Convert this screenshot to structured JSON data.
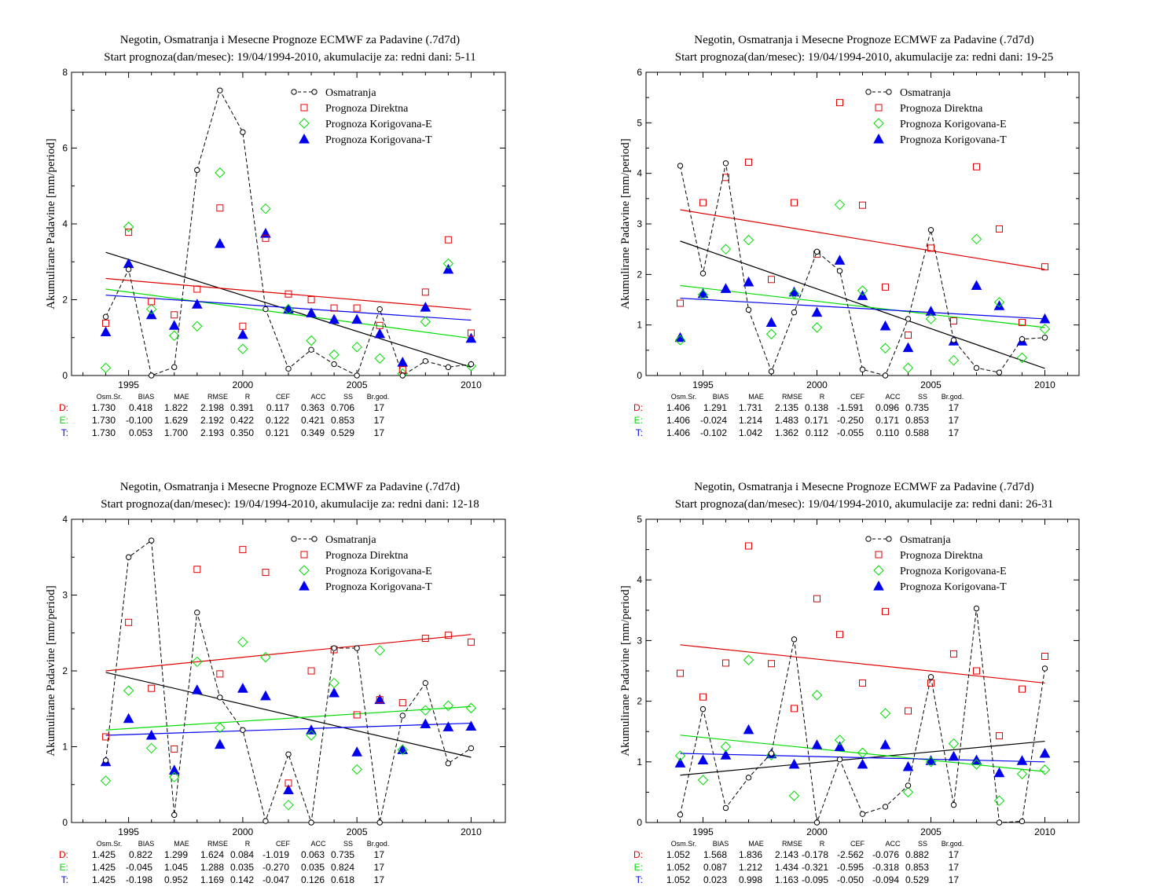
{
  "colors": {
    "observed": "#000000",
    "direct": "#e00000",
    "corrected_e": "#00dd00",
    "corrected_t": "#0000ee"
  },
  "legend": [
    "Osmatranja",
    "Prognoza Direktna",
    "Prognoza Korigovana-E",
    "Prognoza Korigovana-T"
  ],
  "stats_headers": [
    "Osm.Sr.",
    "BIAS",
    "MAE",
    "RMSE",
    "R",
    "CEF",
    "ACC",
    "SS",
    "Br.god."
  ],
  "chart_data": [
    {
      "type": "scatter",
      "title": "Negotin, Osmatranja i Mesecne Prognoze ECMWF za Padavine (.7d7d)",
      "subtitle": "Start prognoza(dan/mesec): 19/04/1994-2010, akumulacije za: redni dani: 5-11",
      "ylabel": "Akumulirane Padavine [mm/period]",
      "xlim": [
        1992.5,
        2011.5
      ],
      "ylim": [
        0,
        8
      ],
      "xticks": [
        1995,
        2000,
        2005,
        2010
      ],
      "yticks": [
        0,
        2,
        4,
        6,
        8
      ],
      "x": [
        1994,
        1995,
        1996,
        1997,
        1998,
        1999,
        2000,
        2001,
        2002,
        2003,
        2004,
        2005,
        2006,
        2007,
        2008,
        2009,
        2010
      ],
      "series": [
        {
          "name": "Osmatranja",
          "values": [
            1.55,
            2.8,
            0.0,
            0.22,
            5.42,
            7.52,
            6.42,
            1.75,
            0.18,
            0.68,
            0.3,
            0.0,
            1.75,
            0.0,
            0.38,
            0.22,
            0.3
          ]
        },
        {
          "name": "Prognoza Direktna",
          "values": [
            1.38,
            3.78,
            1.95,
            1.6,
            2.28,
            4.42,
            1.3,
            3.62,
            2.15,
            2.0,
            1.78,
            1.78,
            1.32,
            0.15,
            2.2,
            3.58,
            1.12
          ]
        },
        {
          "name": "Prognoza Korigovana-E",
          "values": [
            0.2,
            3.92,
            1.75,
            1.05,
            1.3,
            5.35,
            0.7,
            4.4,
            1.75,
            0.92,
            0.55,
            0.75,
            0.45,
            0.05,
            1.42,
            2.95,
            0.25
          ]
        },
        {
          "name": "Prognoza Korigovana-T",
          "values": [
            1.15,
            2.95,
            1.6,
            1.32,
            1.88,
            3.48,
            1.08,
            3.75,
            1.75,
            1.65,
            1.48,
            1.48,
            1.1,
            0.35,
            1.8,
            2.8,
            0.98
          ]
        }
      ],
      "trends": [
        {
          "series": "Osmatranja",
          "from": [
            1994,
            3.25
          ],
          "to": [
            2010,
            0.22
          ]
        },
        {
          "series": "Prognoza Direktna",
          "from": [
            1994,
            2.56
          ],
          "to": [
            2010,
            1.74
          ]
        },
        {
          "series": "Prognoza Korigovana-E",
          "from": [
            1994,
            2.28
          ],
          "to": [
            2010,
            0.98
          ]
        },
        {
          "series": "Prognoza Korigovana-T",
          "from": [
            1994,
            2.12
          ],
          "to": [
            2010,
            1.46
          ]
        }
      ],
      "stats": [
        {
          "label": "D:",
          "values": [
            "1.730",
            "0.418",
            "1.822",
            "2.198",
            "0.391",
            "0.117",
            "0.363",
            "0.706",
            "17"
          ]
        },
        {
          "label": "E:",
          "values": [
            "1.730",
            "-0.100",
            "1.629",
            "2.192",
            "0.422",
            "0.122",
            "0.421",
            "0.853",
            "17"
          ]
        },
        {
          "label": "T:",
          "values": [
            "1.730",
            "0.053",
            "1.700",
            "2.193",
            "0.350",
            "0.121",
            "0.349",
            "0.529",
            "17"
          ]
        }
      ]
    },
    {
      "type": "scatter",
      "title": "Negotin, Osmatranja i Mesecne Prognoze ECMWF za Padavine (.7d7d)",
      "subtitle": "Start prognoza(dan/mesec): 19/04/1994-2010, akumulacije za: redni dani: 19-25",
      "ylabel": "Akumulirane Padavine [mm/period]",
      "xlim": [
        1992.5,
        2011.5
      ],
      "ylim": [
        0,
        6
      ],
      "xticks": [
        1995,
        2000,
        2005,
        2010
      ],
      "yticks": [
        0,
        1,
        2,
        3,
        4,
        5,
        6
      ],
      "x": [
        1994,
        1995,
        1996,
        1997,
        1998,
        1999,
        2000,
        2001,
        2002,
        2003,
        2004,
        2005,
        2006,
        2007,
        2008,
        2009,
        2010
      ],
      "series": [
        {
          "name": "Osmatranja",
          "values": [
            4.15,
            2.02,
            4.2,
            1.3,
            0.08,
            1.25,
            2.45,
            2.07,
            0.12,
            0.0,
            1.12,
            2.88,
            0.7,
            0.15,
            0.06,
            0.72,
            0.75
          ]
        },
        {
          "name": "Prognoza Direktna",
          "values": [
            1.43,
            3.42,
            3.92,
            4.22,
            1.9,
            3.42,
            2.4,
            5.4,
            3.37,
            1.75,
            0.8,
            2.52,
            1.08,
            4.13,
            2.9,
            1.05,
            2.15
          ]
        },
        {
          "name": "Prognoza Korigovana-E",
          "values": [
            0.7,
            1.6,
            2.5,
            2.68,
            0.82,
            1.62,
            0.95,
            3.38,
            1.68,
            0.54,
            0.15,
            1.12,
            0.3,
            2.7,
            1.45,
            0.35,
            0.92
          ]
        },
        {
          "name": "Prognoza Korigovana-T",
          "values": [
            0.75,
            1.62,
            1.72,
            1.85,
            1.05,
            1.65,
            1.25,
            2.28,
            1.58,
            0.98,
            0.55,
            1.27,
            0.68,
            1.78,
            1.38,
            0.68,
            1.12
          ]
        }
      ],
      "trends": [
        {
          "series": "Osmatranja",
          "from": [
            1994,
            2.66
          ],
          "to": [
            2010,
            0.14
          ]
        },
        {
          "series": "Prognoza Direktna",
          "from": [
            1994,
            3.28
          ],
          "to": [
            2010,
            2.1
          ]
        },
        {
          "series": "Prognoza Korigovana-E",
          "from": [
            1994,
            1.78
          ],
          "to": [
            2010,
            0.95
          ]
        },
        {
          "series": "Prognoza Korigovana-T",
          "from": [
            1994,
            1.53
          ],
          "to": [
            2010,
            1.12
          ]
        }
      ],
      "stats": [
        {
          "label": "D:",
          "values": [
            "1.406",
            "1.291",
            "1.731",
            "2.135",
            "0.138",
            "-1.591",
            "0.096",
            "0.735",
            "17"
          ]
        },
        {
          "label": "E:",
          "values": [
            "1.406",
            "-0.024",
            "1.214",
            "1.483",
            "0.171",
            "-0.250",
            "0.171",
            "0.853",
            "17"
          ]
        },
        {
          "label": "T:",
          "values": [
            "1.406",
            "-0.102",
            "1.042",
            "1.362",
            "0.112",
            "-0.055",
            "0.110",
            "0.588",
            "17"
          ]
        }
      ]
    },
    {
      "type": "scatter",
      "title": "Negotin, Osmatranja i Mesecne Prognoze ECMWF za Padavine (.7d7d)",
      "subtitle": "Start prognoza(dan/mesec): 19/04/1994-2010, akumulacije za: redni dani: 12-18",
      "ylabel": "Akumulirane Padavine [mm/period]",
      "xlim": [
        1992.5,
        2011.5
      ],
      "ylim": [
        0,
        4
      ],
      "xticks": [
        1995,
        2000,
        2005,
        2010
      ],
      "yticks": [
        0,
        1,
        2,
        3,
        4
      ],
      "x": [
        1994,
        1995,
        1996,
        1997,
        1998,
        1999,
        2000,
        2001,
        2002,
        2003,
        2004,
        2005,
        2006,
        2007,
        2008,
        2009,
        2010
      ],
      "series": [
        {
          "name": "Osmatranja",
          "values": [
            0.82,
            3.5,
            3.72,
            0.1,
            2.77,
            1.65,
            1.22,
            0.02,
            0.9,
            0.0,
            2.3,
            2.3,
            0.0,
            1.41,
            1.84,
            0.78,
            0.98
          ]
        },
        {
          "name": "Prognoza Direktna",
          "values": [
            1.13,
            2.64,
            1.77,
            0.97,
            3.34,
            1.96,
            3.6,
            3.3,
            0.52,
            2.0,
            2.28,
            1.42,
            1.62,
            1.58,
            2.43,
            2.47,
            2.38
          ]
        },
        {
          "name": "Prognoza Korigovana-E",
          "values": [
            0.55,
            1.74,
            0.98,
            0.6,
            2.12,
            1.25,
            2.38,
            2.18,
            0.23,
            1.15,
            1.84,
            0.7,
            2.27,
            0.96,
            1.48,
            1.54,
            1.51
          ]
        },
        {
          "name": "Prognoza Korigovana-T",
          "values": [
            0.8,
            1.37,
            1.15,
            0.69,
            1.75,
            1.03,
            1.77,
            1.67,
            0.43,
            1.22,
            1.71,
            0.93,
            1.62,
            0.96,
            1.3,
            1.26,
            1.27
          ]
        }
      ],
      "trends": [
        {
          "series": "Osmatranja",
          "from": [
            1994,
            1.98
          ],
          "to": [
            2010,
            0.86
          ]
        },
        {
          "series": "Prognoza Direktna",
          "from": [
            1994,
            2.0
          ],
          "to": [
            2010,
            2.48
          ]
        },
        {
          "series": "Prognoza Korigovana-E",
          "from": [
            1994,
            1.22
          ],
          "to": [
            2010,
            1.53
          ]
        },
        {
          "series": "Prognoza Korigovana-T",
          "from": [
            1994,
            1.15
          ],
          "to": [
            2010,
            1.31
          ]
        }
      ],
      "stats": [
        {
          "label": "D:",
          "values": [
            "1.425",
            "0.822",
            "1.299",
            "1.624",
            "0.084",
            "-1.019",
            "0.063",
            "0.735",
            "17"
          ]
        },
        {
          "label": "E:",
          "values": [
            "1.425",
            "-0.045",
            "1.045",
            "1.288",
            "0.035",
            "-0.270",
            "0.035",
            "0.824",
            "17"
          ]
        },
        {
          "label": "T:",
          "values": [
            "1.425",
            "-0.198",
            "0.952",
            "1.169",
            "0.142",
            "-0.047",
            "0.126",
            "0.618",
            "17"
          ]
        }
      ]
    },
    {
      "type": "scatter",
      "title": "Negotin, Osmatranja i Mesecne Prognoze ECMWF za Padavine (.7d7d)",
      "subtitle": "Start prognoza(dan/mesec): 19/04/1994-2010, akumulacije za: redni dani: 26-31",
      "ylabel": "Akumulirane Padavine [mm/period]",
      "xlim": [
        1992.5,
        2011.5
      ],
      "ylim": [
        0,
        5
      ],
      "xticks": [
        1995,
        2000,
        2005,
        2010
      ],
      "yticks": [
        0,
        1,
        2,
        3,
        4,
        5
      ],
      "x": [
        1994,
        1995,
        1996,
        1997,
        1998,
        1999,
        2000,
        2001,
        2002,
        2003,
        2004,
        2005,
        2006,
        2007,
        2008,
        2009,
        2010
      ],
      "series": [
        {
          "name": "Osmatranja",
          "values": [
            0.13,
            1.87,
            0.24,
            0.74,
            1.14,
            3.02,
            0.0,
            1.04,
            0.14,
            0.26,
            0.61,
            2.4,
            0.29,
            3.53,
            0.0,
            0.02,
            2.54
          ]
        },
        {
          "name": "Prognoza Direktna",
          "values": [
            2.46,
            2.07,
            2.63,
            4.56,
            2.62,
            1.88,
            3.69,
            3.1,
            2.3,
            3.48,
            1.84,
            2.3,
            2.78,
            2.5,
            1.43,
            2.2,
            2.74
          ]
        },
        {
          "name": "Prognoza Korigovana-E",
          "values": [
            1.1,
            0.7,
            1.25,
            2.68,
            1.11,
            0.44,
            2.1,
            1.36,
            1.15,
            1.8,
            0.5,
            1.0,
            1.3,
            0.96,
            0.36,
            0.8,
            0.87
          ]
        },
        {
          "name": "Prognoza Korigovana-T",
          "values": [
            0.98,
            1.03,
            1.11,
            1.53,
            1.13,
            0.96,
            1.28,
            1.25,
            0.96,
            1.28,
            0.92,
            1.02,
            1.09,
            1.03,
            0.82,
            1.02,
            1.14
          ]
        }
      ],
      "trends": [
        {
          "series": "Osmatranja",
          "from": [
            1994,
            0.78
          ],
          "to": [
            2010,
            1.34
          ]
        },
        {
          "series": "Prognoza Direktna",
          "from": [
            1994,
            2.93
          ],
          "to": [
            2010,
            2.3
          ]
        },
        {
          "series": "Prognoza Korigovana-E",
          "from": [
            1994,
            1.44
          ],
          "to": [
            2010,
            0.84
          ]
        },
        {
          "series": "Prognoza Korigovana-T",
          "from": [
            1994,
            1.14
          ],
          "to": [
            2010,
            1.0
          ]
        }
      ],
      "stats": [
        {
          "label": "D:",
          "values": [
            "1.052",
            "1.568",
            "1.836",
            "2.143",
            "-0.178",
            "-2.562",
            "-0.076",
            "0.882",
            "17"
          ]
        },
        {
          "label": "E:",
          "values": [
            "1.052",
            "0.087",
            "1.212",
            "1.434",
            "-0.321",
            "-0.595",
            "-0.318",
            "0.853",
            "17"
          ]
        },
        {
          "label": "T:",
          "values": [
            "1.052",
            "0.023",
            "0.998",
            "1.163",
            "-0.095",
            "-0.050",
            "-0.094",
            "0.529",
            "17"
          ]
        }
      ]
    }
  ]
}
